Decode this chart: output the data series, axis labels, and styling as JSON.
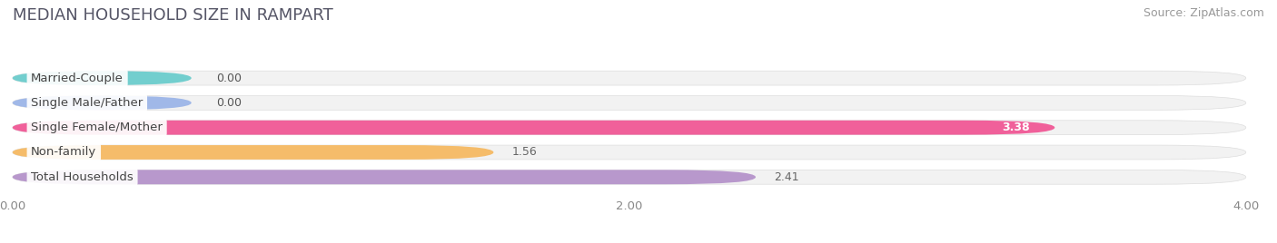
{
  "title": "MEDIAN HOUSEHOLD SIZE IN RAMPART",
  "source": "Source: ZipAtlas.com",
  "categories": [
    "Married-Couple",
    "Single Male/Father",
    "Single Female/Mother",
    "Non-family",
    "Total Households"
  ],
  "values": [
    0.0,
    0.0,
    3.38,
    1.56,
    2.41
  ],
  "bar_colors": [
    "#72cece",
    "#a0b8e8",
    "#f0609a",
    "#f5bc6a",
    "#b898cc"
  ],
  "xlim": [
    0,
    4.0
  ],
  "xticks": [
    0.0,
    2.0,
    4.0
  ],
  "xtick_labels": [
    "0.00",
    "2.00",
    "4.00"
  ],
  "background_color": "#ffffff",
  "row_bg_color": "#f2f2f2",
  "title_fontsize": 13,
  "source_fontsize": 9,
  "label_fontsize": 9.5,
  "value_fontsize": 9
}
